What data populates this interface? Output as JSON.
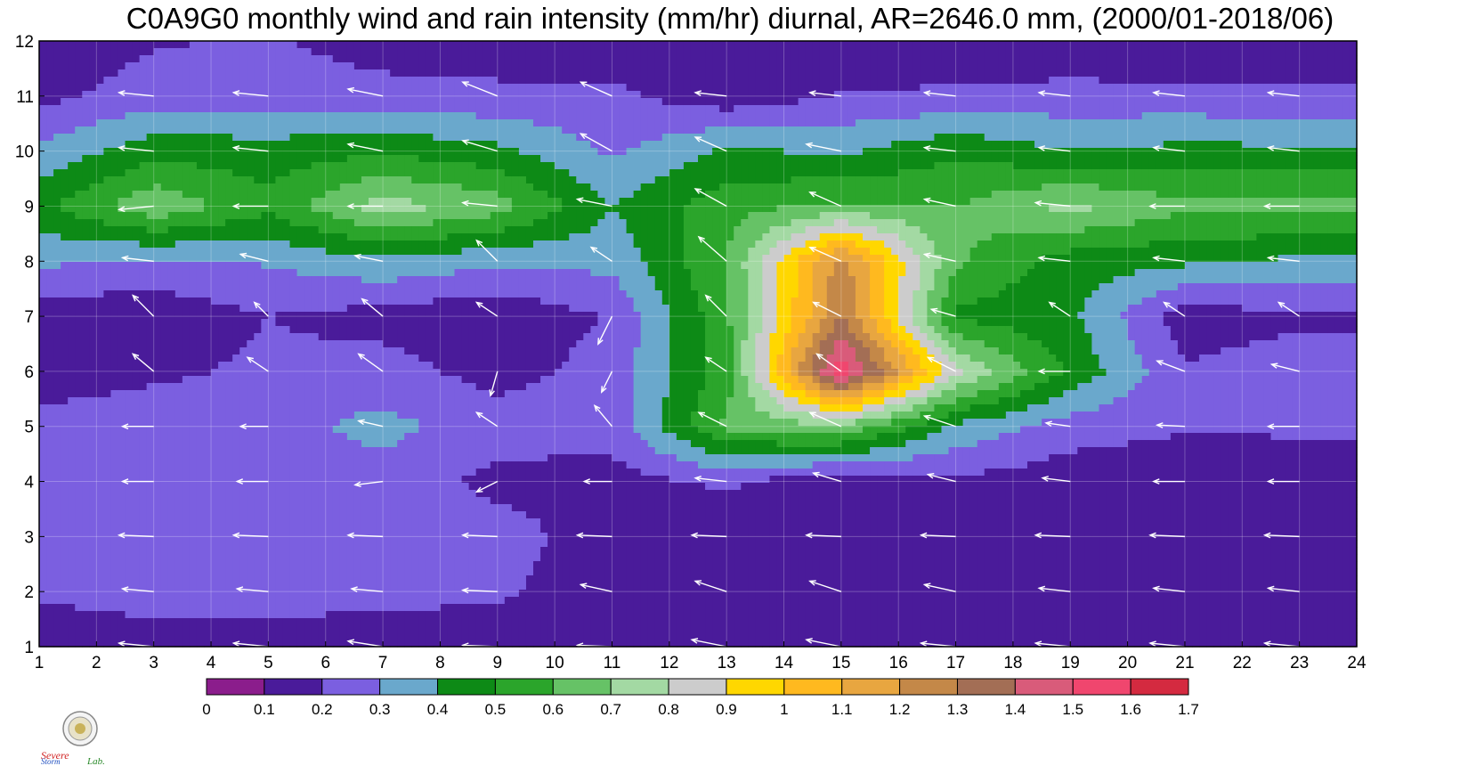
{
  "chart_data": {
    "type": "heatmap",
    "title": "C0A9G0 monthly wind and rain intensity (mm/hr) diurnal, AR=2646.0 mm, (2000/01-2018/06)",
    "x_ticks": [
      1,
      2,
      3,
      4,
      5,
      6,
      7,
      8,
      9,
      10,
      11,
      12,
      13,
      14,
      15,
      16,
      17,
      18,
      19,
      20,
      21,
      22,
      23,
      24
    ],
    "y_ticks": [
      1,
      2,
      3,
      4,
      5,
      6,
      7,
      8,
      9,
      10,
      11,
      12
    ],
    "xlim": [
      1,
      24
    ],
    "ylim": [
      1,
      12
    ],
    "x_hours": [
      1,
      3,
      5,
      7,
      9,
      11,
      13,
      15,
      17,
      19,
      21,
      23
    ],
    "y_months": [
      1,
      2,
      3,
      4,
      5,
      6,
      7,
      8,
      9,
      10,
      11,
      12
    ],
    "rain_values": [
      [
        0.12,
        0.15,
        0.14,
        0.12,
        0.13,
        0.14,
        0.15,
        0.16,
        0.14,
        0.12,
        0.11,
        0.1
      ],
      [
        0.22,
        0.25,
        0.26,
        0.24,
        0.22,
        0.12,
        0.11,
        0.1,
        0.1,
        0.11,
        0.15,
        0.13
      ],
      [
        0.24,
        0.26,
        0.28,
        0.27,
        0.25,
        0.14,
        0.12,
        0.11,
        0.13,
        0.12,
        0.14,
        0.11
      ],
      [
        0.22,
        0.24,
        0.23,
        0.26,
        0.17,
        0.16,
        0.22,
        0.12,
        0.18,
        0.14,
        0.13,
        0.12
      ],
      [
        0.24,
        0.26,
        0.27,
        0.33,
        0.25,
        0.24,
        0.62,
        0.68,
        0.38,
        0.25,
        0.21,
        0.22
      ],
      [
        0.14,
        0.18,
        0.22,
        0.24,
        0.16,
        0.24,
        0.55,
        1.58,
        0.82,
        0.48,
        0.21,
        0.25
      ],
      [
        0.14,
        0.13,
        0.2,
        0.16,
        0.12,
        0.21,
        0.58,
        1.3,
        0.48,
        0.42,
        0.15,
        0.18
      ],
      [
        0.32,
        0.28,
        0.31,
        0.38,
        0.32,
        0.33,
        0.6,
        1.25,
        0.62,
        0.45,
        0.42,
        0.38
      ],
      [
        0.47,
        0.68,
        0.53,
        0.75,
        0.65,
        0.4,
        0.56,
        0.62,
        0.6,
        0.73,
        0.62,
        0.64
      ],
      [
        0.32,
        0.46,
        0.45,
        0.48,
        0.43,
        0.28,
        0.42,
        0.38,
        0.48,
        0.4,
        0.43,
        0.42
      ],
      [
        0.17,
        0.25,
        0.24,
        0.23,
        0.22,
        0.23,
        0.13,
        0.21,
        0.22,
        0.24,
        0.23,
        0.22
      ],
      [
        0.12,
        0.19,
        0.21,
        0.16,
        0.15,
        0.12,
        0.1,
        0.11,
        0.11,
        0.11,
        0.1,
        0.11
      ]
    ],
    "wind_vectors": [
      [
        [
          -0.5,
          0.05
        ],
        [
          -0.5,
          0.05
        ],
        [
          -0.5,
          0.05
        ],
        [
          -0.5,
          0.08
        ],
        [
          -0.5,
          0.02
        ],
        [
          -0.5,
          0.02
        ],
        [
          -0.5,
          0.1
        ],
        [
          -0.5,
          0.1
        ],
        [
          -0.5,
          0.05
        ],
        [
          -0.5,
          0.05
        ],
        [
          -0.5,
          0.05
        ],
        [
          -0.5,
          0.05
        ]
      ],
      [
        [
          -0.45,
          0.04
        ],
        [
          -0.45,
          0.04
        ],
        [
          -0.45,
          0.04
        ],
        [
          -0.45,
          0.04
        ],
        [
          -0.5,
          0.02
        ],
        [
          -0.45,
          0.1
        ],
        [
          -0.45,
          0.15
        ],
        [
          -0.45,
          0.15
        ],
        [
          -0.45,
          0.1
        ],
        [
          -0.45,
          0.05
        ],
        [
          -0.45,
          0.05
        ],
        [
          -0.45,
          0.05
        ]
      ],
      [
        [
          -0.5,
          0.02
        ],
        [
          -0.5,
          0.02
        ],
        [
          -0.5,
          0.02
        ],
        [
          -0.5,
          0.02
        ],
        [
          -0.5,
          0.02
        ],
        [
          -0.5,
          0.02
        ],
        [
          -0.5,
          0.02
        ],
        [
          -0.5,
          0.02
        ],
        [
          -0.5,
          0.02
        ],
        [
          -0.5,
          0.02
        ],
        [
          -0.5,
          0.02
        ],
        [
          -0.5,
          0.02
        ]
      ],
      [
        [
          -0.45,
          0
        ],
        [
          -0.45,
          0
        ],
        [
          -0.45,
          0
        ],
        [
          -0.4,
          -0.05
        ],
        [
          -0.3,
          -0.15
        ],
        [
          -0.4,
          0
        ],
        [
          -0.45,
          0.05
        ],
        [
          -0.4,
          0.12
        ],
        [
          -0.4,
          0.1
        ],
        [
          -0.4,
          0.05
        ],
        [
          -0.45,
          0
        ],
        [
          -0.45,
          0
        ]
      ],
      [
        [
          -0.45,
          0.02
        ],
        [
          -0.45,
          0
        ],
        [
          -0.4,
          0
        ],
        [
          -0.35,
          0.08
        ],
        [
          -0.3,
          0.2
        ],
        [
          -0.25,
          0.3
        ],
        [
          -0.4,
          0.2
        ],
        [
          -0.45,
          0.2
        ],
        [
          -0.45,
          0.15
        ],
        [
          -0.35,
          0.05
        ],
        [
          -0.4,
          0.02
        ],
        [
          -0.45,
          0
        ]
      ],
      [
        [
          -0.4,
          0.15
        ],
        [
          -0.3,
          0.25
        ],
        [
          -0.3,
          0.2
        ],
        [
          -0.35,
          0.25
        ],
        [
          -0.1,
          -0.35
        ],
        [
          -0.15,
          -0.3
        ],
        [
          -0.3,
          0.2
        ],
        [
          -0.35,
          0.25
        ],
        [
          -0.4,
          0.2
        ],
        [
          -0.45,
          0
        ],
        [
          -0.4,
          0.15
        ],
        [
          -0.4,
          0.1
        ]
      ],
      [
        [
          -0.2,
          0.3
        ],
        [
          -0.3,
          0.3
        ],
        [
          -0.2,
          0.2
        ],
        [
          -0.3,
          0.25
        ],
        [
          -0.3,
          0.2
        ],
        [
          -0.2,
          -0.4
        ],
        [
          -0.3,
          0.3
        ],
        [
          -0.4,
          0.2
        ],
        [
          -0.35,
          0.1
        ],
        [
          -0.3,
          0.2
        ],
        [
          -0.3,
          0.2
        ],
        [
          -0.3,
          0.2
        ]
      ],
      [
        [
          -0.45,
          0.1
        ],
        [
          -0.45,
          0.05
        ],
        [
          -0.4,
          0.1
        ],
        [
          -0.4,
          0.08
        ],
        [
          -0.3,
          0.3
        ],
        [
          -0.3,
          0.2
        ],
        [
          -0.4,
          0.35
        ],
        [
          -0.45,
          0.2
        ],
        [
          -0.45,
          0.1
        ],
        [
          -0.45,
          0.05
        ],
        [
          -0.45,
          0.05
        ],
        [
          -0.45,
          0.05
        ]
      ],
      [
        [
          -0.5,
          -0.05
        ],
        [
          -0.5,
          -0.05
        ],
        [
          -0.5,
          0
        ],
        [
          -0.5,
          0
        ],
        [
          -0.5,
          0.05
        ],
        [
          -0.5,
          0.1
        ],
        [
          -0.45,
          0.25
        ],
        [
          -0.45,
          0.2
        ],
        [
          -0.45,
          0.1
        ],
        [
          -0.5,
          0.05
        ],
        [
          -0.5,
          0
        ],
        [
          -0.5,
          0
        ]
      ],
      [
        [
          -0.5,
          0.05
        ],
        [
          -0.5,
          0.05
        ],
        [
          -0.5,
          0.05
        ],
        [
          -0.5,
          0.1
        ],
        [
          -0.5,
          0.15
        ],
        [
          -0.45,
          0.25
        ],
        [
          -0.45,
          0.2
        ],
        [
          -0.5,
          0.1
        ],
        [
          -0.45,
          0.05
        ],
        [
          -0.45,
          0.05
        ],
        [
          -0.45,
          0.05
        ],
        [
          -0.45,
          0.05
        ]
      ],
      [
        [
          -0.5,
          0.05
        ],
        [
          -0.5,
          0.05
        ],
        [
          -0.5,
          0.05
        ],
        [
          -0.5,
          0.1
        ],
        [
          -0.5,
          0.2
        ],
        [
          -0.45,
          0.2
        ],
        [
          -0.45,
          0.05
        ],
        [
          -0.45,
          0.05
        ],
        [
          -0.45,
          0.05
        ],
        [
          -0.45,
          0.05
        ],
        [
          -0.45,
          0.05
        ],
        [
          -0.45,
          0.05
        ]
      ],
      [
        [
          -0.5,
          0.2
        ],
        [
          -0.45,
          0.2
        ],
        [
          -0.45,
          0.1
        ],
        [
          -0.45,
          0.1
        ],
        [
          -0.45,
          0.1
        ],
        [
          -0.45,
          0.1
        ],
        [
          -0.45,
          0.1
        ],
        [
          -0.45,
          0.1
        ],
        [
          -0.45,
          0.1
        ],
        [
          -0.45,
          0.1
        ],
        [
          -0.45,
          0.1
        ],
        [
          -0.45,
          0.1
        ]
      ]
    ],
    "colorbar": {
      "levels": [
        "0",
        "0.1",
        "0.2",
        "0.3",
        "0.4",
        "0.5",
        "0.6",
        "0.7",
        "0.8",
        "0.9",
        "1",
        "1.1",
        "1.2",
        "1.3",
        "1.4",
        "1.5",
        "1.6",
        "1.7"
      ],
      "colors": [
        "#8b1d8c",
        "#4a1b9a",
        "#7b5fe0",
        "#6aa8cc",
        "#0d8a16",
        "#2ba52b",
        "#66c266",
        "#a3d9a3",
        "#cccccc",
        "#ffd700",
        "#ffb91f",
        "#e8a640",
        "#c48848",
        "#a36e55",
        "#d95b7a",
        "#f0466e",
        "#d42a40"
      ]
    },
    "contour_line_color": "#f0a030",
    "vector_color": "#ffffff"
  },
  "logo": {
    "lab_name_parts": [
      "Severe",
      "Storm",
      "Lab."
    ]
  }
}
